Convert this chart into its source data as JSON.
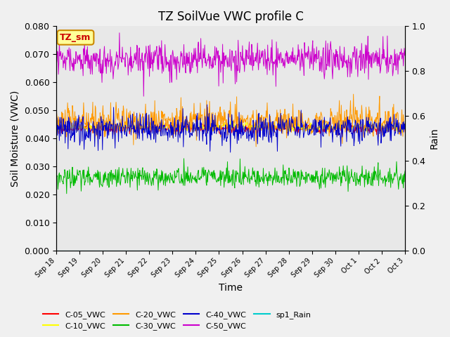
{
  "title": "TZ SoilVue VWC profile C",
  "xlabel": "Time",
  "ylabel_left": "Soil Moisture (VWC)",
  "ylabel_right": "Rain",
  "ylim_left": [
    0.0,
    0.08
  ],
  "ylim_right": [
    0.0,
    1.0
  ],
  "yticks_left": [
    0.0,
    0.01,
    0.02,
    0.03,
    0.04,
    0.05,
    0.06,
    0.07,
    0.08
  ],
  "yticks_right": [
    0.0,
    0.2,
    0.4,
    0.6,
    0.8,
    1.0
  ],
  "background_color": "#e8e8e8",
  "annotation_text": "TZ_sm",
  "annotation_color": "#ffff99",
  "annotation_border": "#cc8800",
  "colors": {
    "C-05_VWC": "#ff0000",
    "C-10_VWC": "#ffff00",
    "C-20_VWC": "#ff9900",
    "C-30_VWC": "#00bb00",
    "C-40_VWC": "#0000cc",
    "C-50_VWC": "#cc00cc",
    "sp1_Rain": "#00cccc"
  },
  "tick_dates": [
    "Sep 18",
    "Sep 19",
    "Sep 20",
    "Sep 21",
    "Sep 22",
    "Sep 23",
    "Sep 24",
    "Sep 25",
    "Sep 26",
    "Sep 27",
    "Sep 28",
    "Sep 29",
    "Sep 30",
    "Oct 1",
    "Oct 2",
    "Oct 3"
  ]
}
